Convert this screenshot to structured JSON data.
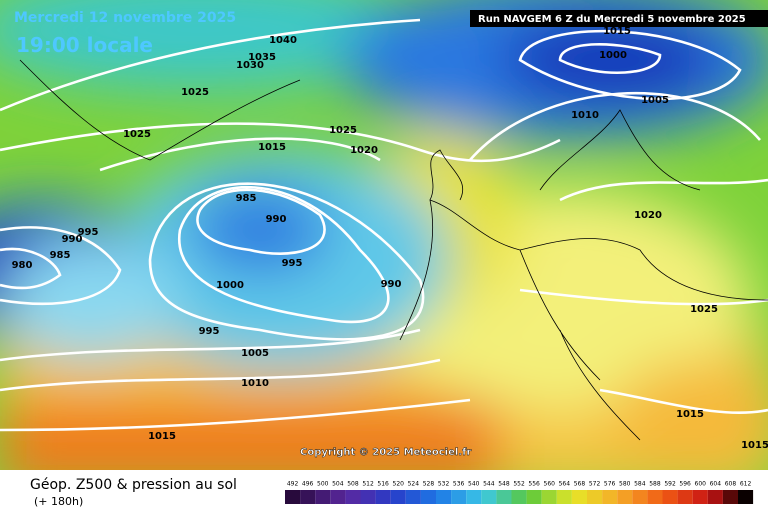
{
  "header": {
    "title": "Mercredi 12 novembre 2025",
    "time": "19:00 locale",
    "run": "Run NAVGEM 6 Z du Mercredi 5 novembre 2025"
  },
  "isobar_labels": [
    1040,
    1035,
    1030,
    1025,
    1025,
    1025,
    1015,
    1020,
    1015,
    1000,
    1005,
    1010,
    985,
    990,
    995,
    990,
    985,
    980,
    995,
    990,
    1000,
    995,
    1005,
    1010,
    1015,
    1020,
    1025,
    1015,
    1015
  ],
  "copyright": "Copyright © 2025 Meteociel.fr",
  "legend": {
    "title": "Géop. Z500 & pression au sol",
    "lead": "(+ 180h)",
    "scale": [
      492,
      496,
      500,
      504,
      508,
      512,
      516,
      520,
      524,
      528,
      532,
      536,
      540,
      544,
      548,
      552,
      556,
      560,
      564,
      568,
      572,
      576,
      580,
      584,
      588,
      592,
      596,
      600,
      604,
      608,
      612
    ]
  }
}
